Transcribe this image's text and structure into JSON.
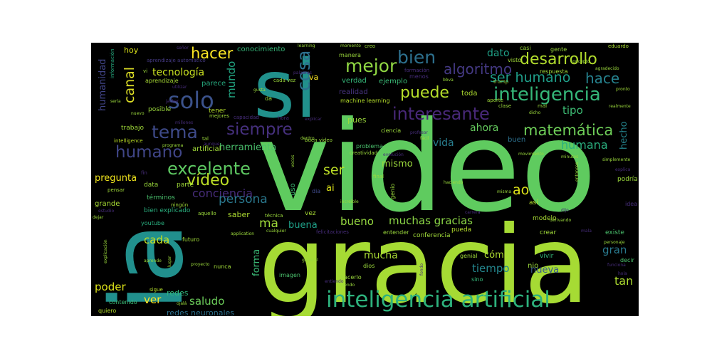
{
  "colors": {
    "background": "#000000",
    "page": "#ffffff"
  },
  "words": {
    "video": "video",
    "ia": "ia",
    "gracia": "gracia",
    "si": "si",
    "inteligencia_artificial": "inteligencia artificial",
    "inteligencia": "inteligencia",
    "solo": "solo",
    "desarrollo": "desarrollo",
    "mejor": "mejor",
    "bien": "bien",
    "hacer": "hacer",
    "cosa": "cosa",
    "puede": "puede",
    "interesante": "interesante",
    "algoritmo": "algoritmo",
    "ser_humano": "ser humano",
    "hace": "hace",
    "tema": "tema",
    "siempre": "siempre",
    "matematica": "matemática",
    "humano": "humano",
    "excelente": "excelente",
    "video_small": "vídeo",
    "conciencia": "conciencia",
    "persona": "persona",
    "tecnologia": "tecnología",
    "canal": "canal",
    "mundo": "mundo",
    "humanidad": "humanidad",
    "muchas_gracias": "muchas gracias",
    "bueno": "bueno",
    "buena": "buena",
    "ma": "ma",
    "ser": "ser",
    "ao": "ao",
    "cada": "cada",
    "saludo": "saludo",
    "tiempo": "tiempo",
    "gran": "gran",
    "tan": "tan",
    "humana": "humana",
    "hecho": "hecho",
    "tipo": "tipo",
    "ahora": "ahora",
    "vida": "vida",
    "mismo": "mismo",
    "herramienta": "herramienta",
    "dato": "dato",
    "mucha": "mucha",
    "como": "cómo",
    "nueva": "nueva",
    "poder": "poder",
    "ver": "ver",
    "redes": "redes",
    "redes_neuronales": "redes neuronales",
    "forma": "forma",
    "pregunta": "pregunta",
    "conocimiento": "conocimiento",
    "parece": "parece",
    "va": "va",
    "pues": "pues",
    "ejemplo": "ejemplo",
    "verdad": "verdad",
    "realidad": "realidad",
    "machine_learning": "machine learning",
    "toda": "toda",
    "hoy": "hoy",
    "informacion": "información",
    "aprendizaje": "aprendizaje",
    "aprendizaje_automatico": "aprendizaje automático",
    "tener": "tener",
    "posible": "posible",
    "trabajo": "trabajo",
    "artificial": "artificial",
    "intelligence": "intelligence",
    "data": "data",
    "parte": "parte",
    "pensar": "pensar",
    "terminos": "términos",
    "grande": "grande",
    "bien_explicado": "bien explicado",
    "youtube": "youtube",
    "contenido": "contenido",
    "quiero": "quiero",
    "saber": "saber",
    "vez": "vez",
    "ai": "ai",
    "dia": "dia",
    "uso": "uso",
    "buen": "buen",
    "buen_video": "buen video",
    "creatividad": "creatividad",
    "problema": "problema",
    "ciencia": "ciencia",
    "entender": "entender",
    "conferencia": "conferencia",
    "pueda": "pueda",
    "genial": "genial",
    "vivir": "vivir",
    "crear": "crear",
    "modelo": "modelo",
    "asi": "así",
    "existe": "existe",
    "idea": "idea",
    "podria": "podría",
    "decir": "decir",
    "nio": "nio",
    "futuro": "futuro",
    "nunca": "nunca",
    "imagen": "imagen",
    "sigue": "sigue",
    "hacerlo": "hacerlo",
    "dios": "dios",
    "sino": "sino",
    "mente": "mente",
    "casi": "casi",
    "gente": "gente",
    "eduardo": "eduardo",
    "visto": "visto",
    "respuesta": "respuesta",
    "agradecido": "agradecido",
    "concepto": "concepto",
    "pronto": "pronto",
    "realmente": "realmente",
    "clase": "clase",
    "mal": "mal",
    "dicho": "dicho",
    "aporte": "aporte",
    "trump": "trump",
    "menos": "menos",
    "formacion": "formación",
    "manera": "manera",
    "momento": "momento",
    "creo": "creo",
    "learning": "learning",
    "palabras": "palabras",
    "cada_vez": "cada vez",
    "gusta": "gusta",
    "da": "da",
    "hora": "hora",
    "capacidad": "capacidad",
    "mejores": "mejores",
    "millones": "millones",
    "tal": "tal",
    "programa": "programa",
    "fin": "fin",
    "ningun": "ningún",
    "aquello": "aquello",
    "tecnica": "técnica",
    "application": "application",
    "cualquier": "cualquier",
    "felicitaciones": "felicitaciones",
    "increible": "increible",
    "final": "final",
    "genio": "genio",
    "haciendo": "haciendo",
    "misma": "misma",
    "entonces": "entonces",
    "movimiento": "movimiento",
    "minutos": "minutos",
    "simplemente": "simplemente",
    "explica": "explica",
    "lugar": "lugar",
    "aprende": "aprende",
    "proyecto": "proyecto",
    "general": "general",
    "explicacion": "explicación",
    "estudio": "estudio",
    "dejar": "dejar",
    "ojala": "ojalá",
    "nuevo": "nuevo",
    "seria": "sería",
    "utilizar": "utilizar",
    "vi": "vi",
    "fondo": "fondo",
    "entiendo": "entiendo",
    "viendo": "viendo",
    "evolucion": "evolución",
    "veces": "veces",
    "dentro": "dentro",
    "facil": "fácil",
    "profesor": "profesor",
    "dijo": "dijo",
    "derivando": "derivando",
    "mala": "mala",
    "personaje": "personaje",
    "hola": "hola",
    "funciona": "funciona",
    "carrera": "carrera",
    "explicar": "explicar",
    "bbva": "bbva",
    "jacker": "jacker",
    "aunque": "aunque",
    "senor": "señor",
    "usar": "usar",
    "hecho2": "hecho",
    "pensamiento": "pensamiento",
    "amigos": "amigos"
  }
}
